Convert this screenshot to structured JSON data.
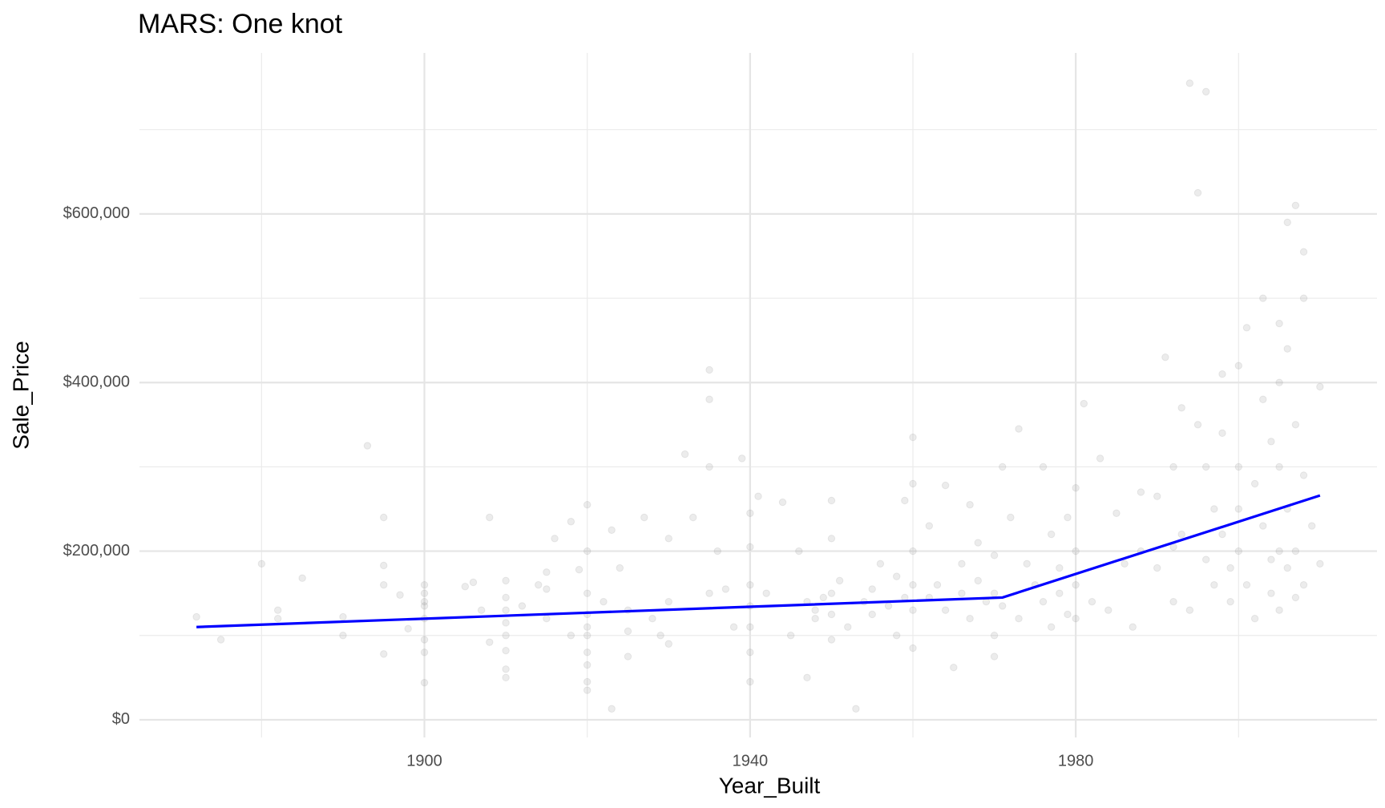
{
  "chart_data": {
    "type": "scatter",
    "title": "MARS: One knot",
    "x_label": "Year_Built",
    "y_label": "Sale_Price",
    "xlim": [
      1865,
      2017
    ],
    "ylim": [
      -21000,
      791000
    ],
    "xticks": [
      1900,
      1940,
      1980
    ],
    "minor_xticks": [
      1880,
      1920,
      1960,
      2000
    ],
    "yticks": [
      {
        "value": 0,
        "label": "$0"
      },
      {
        "value": 200000,
        "label": "$200,000"
      },
      {
        "value": 400000,
        "label": "$400,000"
      },
      {
        "value": 600000,
        "label": "$600,000"
      }
    ],
    "minor_yticks": [
      100000,
      300000,
      500000,
      700000
    ],
    "grid": true,
    "points": {
      "color": "#7f7f7f",
      "alpha": 0.15,
      "x": [
        1872,
        1875,
        1880,
        1882,
        1882,
        1885,
        1890,
        1890,
        1893,
        1895,
        1895,
        1895,
        1895,
        1897,
        1898,
        1900,
        1900,
        1900,
        1900,
        1900,
        1900,
        1900,
        1900,
        1905,
        1906,
        1907,
        1908,
        1908,
        1910,
        1910,
        1910,
        1910,
        1910,
        1910,
        1910,
        1910,
        1912,
        1914,
        1915,
        1915,
        1915,
        1916,
        1918,
        1918,
        1919,
        1920,
        1920,
        1920,
        1920,
        1920,
        1920,
        1920,
        1920,
        1920,
        1920,
        1922,
        1923,
        1923,
        1924,
        1925,
        1925,
        1925,
        1927,
        1928,
        1929,
        1930,
        1930,
        1930,
        1932,
        1933,
        1935,
        1935,
        1935,
        1935,
        1936,
        1937,
        1938,
        1939,
        1940,
        1940,
        1940,
        1940,
        1940,
        1940,
        1940,
        1941,
        1942,
        1944,
        1945,
        1946,
        1947,
        1947,
        1948,
        1948,
        1949,
        1950,
        1950,
        1950,
        1950,
        1950,
        1951,
        1952,
        1953,
        1954,
        1955,
        1955,
        1956,
        1957,
        1958,
        1958,
        1959,
        1959,
        1960,
        1960,
        1960,
        1960,
        1960,
        1960,
        1962,
        1962,
        1963,
        1964,
        1964,
        1965,
        1966,
        1966,
        1967,
        1967,
        1968,
        1968,
        1969,
        1970,
        1970,
        1970,
        1970,
        1971,
        1971,
        1972,
        1973,
        1973,
        1974,
        1975,
        1976,
        1976,
        1977,
        1977,
        1978,
        1978,
        1979,
        1979,
        1980,
        1980,
        1980,
        1980,
        1981,
        1982,
        1983,
        1984,
        1985,
        1986,
        1987,
        1988,
        1988,
        1990,
        1990,
        1991,
        1992,
        1992,
        1992,
        1993,
        1993,
        1994,
        1994,
        1995,
        1995,
        1996,
        1996,
        1996,
        1997,
        1997,
        1998,
        1998,
        1998,
        1999,
        1999,
        2000,
        2000,
        2000,
        2000,
        2001,
        2001,
        2002,
        2002,
        2003,
        2003,
        2003,
        2004,
        2004,
        2004,
        2005,
        2005,
        2005,
        2005,
        2005,
        2006,
        2006,
        2006,
        2006,
        2007,
        2007,
        2007,
        2007,
        2008,
        2008,
        2008,
        2008,
        2009,
        2010,
        2010
      ],
      "y": [
        122000,
        95000,
        185000,
        130000,
        120000,
        168000,
        100000,
        122000,
        325000,
        240000,
        183000,
        160000,
        78000,
        148000,
        108000,
        160000,
        150000,
        140000,
        135000,
        120000,
        95000,
        80000,
        44000,
        158000,
        163000,
        130000,
        240000,
        92000,
        165000,
        145000,
        130000,
        115000,
        100000,
        82000,
        60000,
        50000,
        135000,
        160000,
        175000,
        155000,
        120000,
        215000,
        235000,
        100000,
        178000,
        255000,
        200000,
        150000,
        125000,
        110000,
        100000,
        80000,
        65000,
        45000,
        35000,
        140000,
        225000,
        13000,
        180000,
        130000,
        105000,
        75000,
        240000,
        120000,
        100000,
        215000,
        140000,
        90000,
        315000,
        240000,
        150000,
        415000,
        380000,
        300000,
        200000,
        155000,
        110000,
        310000,
        245000,
        205000,
        160000,
        135000,
        110000,
        80000,
        45000,
        265000,
        150000,
        258000,
        100000,
        200000,
        140000,
        50000,
        120000,
        130000,
        145000,
        260000,
        215000,
        150000,
        125000,
        95000,
        165000,
        110000,
        13000,
        140000,
        155000,
        125000,
        185000,
        135000,
        170000,
        100000,
        260000,
        145000,
        335000,
        280000,
        200000,
        160000,
        130000,
        85000,
        145000,
        230000,
        160000,
        278000,
        130000,
        62000,
        185000,
        150000,
        255000,
        120000,
        210000,
        165000,
        140000,
        195000,
        150000,
        100000,
        75000,
        300000,
        135000,
        240000,
        345000,
        120000,
        185000,
        160000,
        300000,
        140000,
        220000,
        110000,
        180000,
        150000,
        240000,
        125000,
        275000,
        200000,
        160000,
        120000,
        375000,
        140000,
        310000,
        130000,
        245000,
        185000,
        110000,
        270000,
        200000,
        265000,
        180000,
        430000,
        300000,
        205000,
        140000,
        370000,
        220000,
        130000,
        755000,
        625000,
        350000,
        300000,
        745000,
        190000,
        160000,
        250000,
        410000,
        340000,
        220000,
        180000,
        140000,
        420000,
        300000,
        250000,
        200000,
        465000,
        160000,
        280000,
        120000,
        500000,
        380000,
        230000,
        330000,
        190000,
        150000,
        470000,
        400000,
        300000,
        200000,
        130000,
        590000,
        440000,
        250000,
        180000,
        610000,
        350000,
        200000,
        145000,
        555000,
        500000,
        290000,
        160000,
        230000,
        395000,
        185000
      ]
    },
    "fit": {
      "color": "#0000ff",
      "x": [
        1872,
        1971,
        2010
      ],
      "y": [
        110000,
        145000,
        266000
      ]
    }
  }
}
